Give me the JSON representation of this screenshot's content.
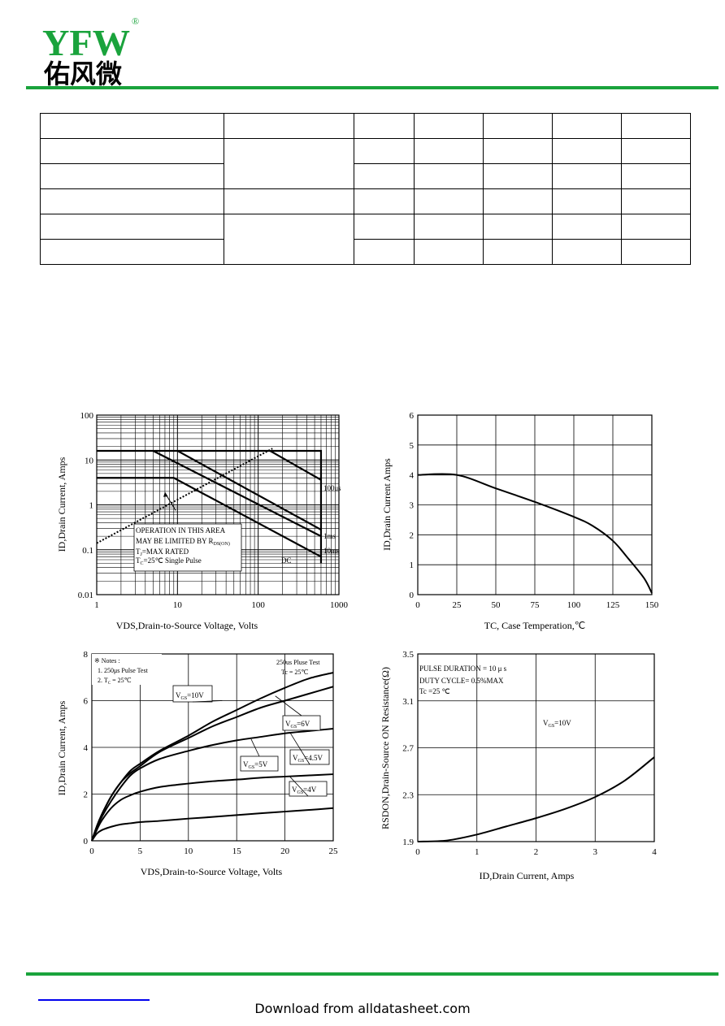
{
  "header": {
    "logo_latin": "YFW",
    "logo_mark": "®",
    "logo_chinese": "佑风微",
    "brand_color": "#1aa33c"
  },
  "footer": {
    "download": "Download from alldatasheet.com",
    "link_color": "#0000ee"
  },
  "charts": {
    "soa": {
      "type": "line",
      "scale": "log-log",
      "xlabel": "VDS,Drain-to-Source Voltage, Volts",
      "ylabel": "ID,Drain Current, Amps",
      "xticks": [
        "1",
        "10",
        "100",
        "1000"
      ],
      "yticks": [
        "100",
        "10",
        "1",
        "0.1",
        "0.01"
      ],
      "xlim": [
        1,
        1000
      ],
      "ylim": [
        0.01,
        100
      ],
      "curve_labels": [
        "100us",
        "1ms",
        "10ms",
        "DC"
      ],
      "annotation": [
        "OPERATION IN THIS AREA",
        "MAY BE LIMITED BY R",
        "DS(ON)",
        "T",
        "J",
        "=MAX RATED",
        "T",
        "C",
        "=25℃  Single Pulse"
      ]
    },
    "derating": {
      "type": "line",
      "xlabel": "TC, Case Temperation,℃",
      "ylabel": "ID,Drain Current Amps",
      "xticks": [
        "0",
        "25",
        "50",
        "75",
        "100",
        "125",
        "150"
      ],
      "yticks": [
        "0",
        "1",
        "2",
        "3",
        "4",
        "5",
        "6"
      ],
      "xlim": [
        0,
        150
      ],
      "ylim": [
        0,
        6
      ],
      "x": [
        0,
        25,
        50,
        75,
        100,
        112,
        125,
        135,
        145,
        150
      ],
      "y": [
        4.0,
        4.0,
        3.55,
        3.1,
        2.6,
        2.3,
        1.8,
        1.2,
        0.55,
        0.05
      ]
    },
    "output": {
      "type": "line",
      "xlabel": "VDS,Drain-to-Source Voltage, Volts",
      "ylabel": "ID,Drain Current, Amps",
      "xticks": [
        "0",
        "5",
        "10",
        "15",
        "20",
        "25"
      ],
      "yticks": [
        "0",
        "2",
        "4",
        "6",
        "8"
      ],
      "xlim": [
        0,
        25
      ],
      "ylim": [
        0,
        8
      ],
      "notes": [
        "※ Notes :",
        "1. 250μs Pulse Test",
        "2. T",
        "C",
        " = 25℃"
      ],
      "test": [
        "250us Pluse Test",
        "Tc = 25℃"
      ],
      "x": [
        0,
        0.5,
        1,
        2,
        3,
        4,
        5,
        7,
        10,
        12.5,
        15,
        17.5,
        20,
        22.5,
        25
      ],
      "series": [
        {
          "name": "VGS=10V",
          "values": [
            0,
            0.6,
            1.1,
            1.9,
            2.5,
            3.0,
            3.3,
            3.85,
            4.5,
            5.1,
            5.6,
            6.1,
            6.55,
            6.95,
            7.2
          ]
        },
        {
          "name": "VGS=6V",
          "values": [
            0,
            0.6,
            1.1,
            1.9,
            2.5,
            2.9,
            3.2,
            3.8,
            4.4,
            4.9,
            5.3,
            5.7,
            6.0,
            6.3,
            6.6
          ]
        },
        {
          "name": "VGS=5V",
          "values": [
            0,
            0.55,
            1.0,
            1.7,
            2.3,
            2.8,
            3.1,
            3.5,
            3.85,
            4.1,
            4.3,
            4.45,
            4.6,
            4.7,
            4.8
          ]
        },
        {
          "name": "VGS=4.5V",
          "values": [
            0,
            0.45,
            0.85,
            1.4,
            1.75,
            1.95,
            2.1,
            2.3,
            2.45,
            2.55,
            2.62,
            2.7,
            2.75,
            2.8,
            2.85
          ]
        },
        {
          "name": "VGS=4V",
          "values": [
            0,
            0.3,
            0.45,
            0.6,
            0.7,
            0.75,
            0.8,
            0.85,
            0.95,
            1.02,
            1.1,
            1.18,
            1.25,
            1.32,
            1.4
          ]
        }
      ],
      "label_parts": [
        {
          "pre": "V",
          "sub": "GS",
          "post": "=10V"
        },
        {
          "pre": "V",
          "sub": "GS",
          "post": "=6V"
        },
        {
          "pre": "V",
          "sub": "GS",
          "post": "=5V"
        },
        {
          "pre": "V",
          "sub": "GS",
          "post": "=4.5V"
        },
        {
          "pre": "V",
          "sub": "GS",
          "post": "=4V"
        }
      ]
    },
    "rdson": {
      "type": "line",
      "xlabel": "ID,Drain Current, Amps",
      "ylabel": "RSDON,Drain-Source ON Resistance(Ω)",
      "xticks": [
        "0",
        "1",
        "2",
        "3",
        "4"
      ],
      "yticks": [
        "1.9",
        "2.3",
        "2.7",
        "3.1",
        "3.5"
      ],
      "xlim": [
        0,
        4
      ],
      "ylim": [
        1.9,
        3.5
      ],
      "notes": [
        "PULSE   DURATION = 10 μ s",
        "DUTY   CYCLE= 0.5%MAX",
        "Tc =25  ℃"
      ],
      "vgs": {
        "pre": "V",
        "sub": "GS",
        "post": "=10V"
      },
      "x": [
        0,
        0.5,
        1,
        1.5,
        2,
        2.5,
        3,
        3.5,
        4
      ],
      "y": [
        1.9,
        1.91,
        1.96,
        2.03,
        2.1,
        2.18,
        2.28,
        2.42,
        2.62
      ]
    }
  }
}
